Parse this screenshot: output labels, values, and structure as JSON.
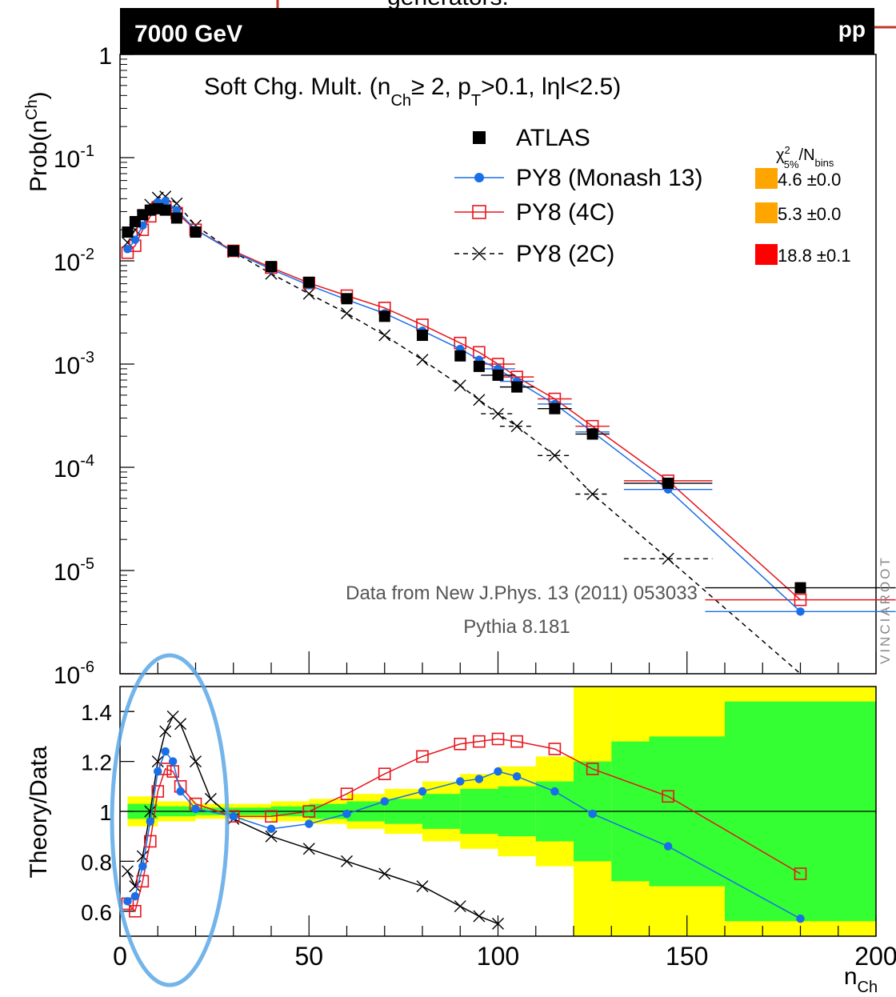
{
  "header": {
    "top_caption": "generators.",
    "energy_label": "7000 GeV",
    "beam_label": "pp"
  },
  "watermark": "VINCIAROOT",
  "chart_data": [
    {
      "type": "line",
      "panel": "main",
      "title": "Soft Chg. Mult. (n",
      "title_sub": "Ch",
      "title_rest": "≥ 2, p",
      "title_sub2": "T",
      "title_tail": ">0.1, lηl<2.5)",
      "ylabel": "Prob(n",
      "ylabel_sub": "Ch",
      "ylabel_tail": ")",
      "xlim": [
        0,
        200
      ],
      "ylim": [
        1e-06,
        1
      ],
      "log_y": true,
      "y_ticks": [
        "1",
        "10",
        "10",
        "10",
        "10",
        "10",
        "10"
      ],
      "y_tick_exponents": [
        "",
        "-1",
        "-2",
        "-3",
        "-4",
        "-5",
        "-6"
      ],
      "y_tick_values": [
        1,
        0.1,
        0.01,
        0.001,
        0.0001,
        1e-05,
        1e-06
      ],
      "legend": {
        "placement": "top-right",
        "chi_header": "χ",
        "chi_sup": "2",
        "chi_sub": "5%",
        "chi_rest": "/N",
        "chi_rest_sub": "bins",
        "entries": [
          {
            "name": "ATLAS",
            "marker": "filled-square",
            "color": "#000000",
            "chi": ""
          },
          {
            "name": "PY8 (Monash 13)",
            "marker": "filled-circle",
            "color": "#1a6fe8",
            "chi": "4.6 ±0.0",
            "chi_color": "#ffa500"
          },
          {
            "name": "PY8 (4C)",
            "marker": "open-square",
            "color": "#e8141c",
            "chi": "5.3 ±0.0",
            "chi_color": "#ffa500"
          },
          {
            "name": "PY8 (2C)",
            "marker": "cross",
            "color": "#000000",
            "chi": "18.8 ±0.1",
            "chi_color": "#ff0000"
          }
        ]
      },
      "annotations": [
        "Data from New J.Phys. 13 (2011) 053033",
        "Pythia 8.181"
      ],
      "series": [
        {
          "name": "ATLAS",
          "color": "#000000",
          "x": [
            2,
            4,
            6,
            8,
            10,
            12,
            15,
            20,
            30,
            40,
            50,
            60,
            70,
            80,
            90,
            95,
            100,
            105,
            115,
            125,
            145,
            180
          ],
          "y": [
            0.019,
            0.024,
            0.028,
            0.031,
            0.032,
            0.031,
            0.026,
            0.019,
            0.0125,
            0.0088,
            0.0062,
            0.0043,
            0.0029,
            0.0019,
            0.0012,
            0.00095,
            0.00078,
            0.0006,
            0.00037,
            0.00021,
            7e-05,
            6.8e-06
          ]
        },
        {
          "name": "PY8 (Monash 13)",
          "color": "#1a6fe8",
          "x": [
            2,
            4,
            6,
            8,
            10,
            12,
            15,
            20,
            30,
            40,
            50,
            60,
            70,
            80,
            90,
            95,
            100,
            105,
            115,
            125,
            145,
            180
          ],
          "y": [
            0.013,
            0.016,
            0.022,
            0.03,
            0.037,
            0.038,
            0.031,
            0.02,
            0.0122,
            0.0083,
            0.0058,
            0.0042,
            0.0031,
            0.0021,
            0.0014,
            0.0011,
            0.0009,
            0.00068,
            0.00041,
            0.00022,
            6.1e-05,
            4e-06
          ]
        },
        {
          "name": "PY8 (4C)",
          "color": "#e8141c",
          "x": [
            2,
            4,
            6,
            8,
            10,
            12,
            15,
            20,
            30,
            40,
            50,
            60,
            70,
            80,
            90,
            95,
            100,
            105,
            115,
            125,
            145,
            180
          ],
          "y": [
            0.012,
            0.014,
            0.02,
            0.027,
            0.033,
            0.033,
            0.029,
            0.02,
            0.0125,
            0.0086,
            0.0061,
            0.0046,
            0.0035,
            0.0024,
            0.0016,
            0.0013,
            0.001,
            0.00075,
            0.00046,
            0.00025,
            7.4e-05,
            5.2e-06
          ]
        },
        {
          "name": "PY8 (2C)",
          "color": "#000000",
          "x": [
            2,
            4,
            6,
            8,
            10,
            12,
            15,
            20,
            30,
            40,
            50,
            60,
            70,
            80,
            90,
            95,
            100,
            105,
            115,
            125,
            145,
            180
          ],
          "y": [
            0.015,
            0.02,
            0.027,
            0.035,
            0.041,
            0.042,
            0.036,
            0.022,
            0.0122,
            0.0075,
            0.0048,
            0.0031,
            0.0019,
            0.0011,
            0.00062,
            0.00045,
            0.00033,
            0.00025,
            0.00013,
            5.5e-05,
            1.3e-05,
            6e-07
          ]
        }
      ]
    },
    {
      "type": "line",
      "panel": "ratio",
      "ylabel": "Theory/Data",
      "xlabel": "n",
      "xlabel_sub": "Ch",
      "xlim": [
        0,
        200
      ],
      "ylim": [
        0.5,
        1.5
      ],
      "x_ticks": [
        "0",
        "50",
        "100",
        "150",
        "200"
      ],
      "x_tick_values": [
        0,
        50,
        100,
        150,
        200
      ],
      "y_ticks": [
        "1.4",
        "1.2",
        "1",
        "0.8",
        "0.6"
      ],
      "y_tick_values": [
        1.4,
        1.2,
        1.0,
        0.8,
        0.6
      ],
      "bands": {
        "x_edges": [
          2,
          10,
          20,
          30,
          40,
          50,
          60,
          70,
          80,
          90,
          100,
          110,
          120,
          130,
          140,
          160,
          200
        ],
        "yellow_half": [
          0.06,
          0.04,
          0.03,
          0.03,
          0.04,
          0.05,
          0.07,
          0.09,
          0.12,
          0.15,
          0.18,
          0.22,
          0.6,
          0.6,
          0.6,
          0.6
        ],
        "green_half": [
          0.03,
          0.02,
          0.015,
          0.015,
          0.02,
          0.03,
          0.04,
          0.05,
          0.07,
          0.09,
          0.1,
          0.12,
          0.2,
          0.28,
          0.3,
          0.44
        ]
      },
      "series": [
        {
          "name": "PY8 (Monash 13)",
          "color": "#1a6fe8",
          "x": [
            2,
            4,
            6,
            8,
            10,
            12,
            14,
            16,
            20,
            30,
            40,
            50,
            60,
            70,
            80,
            90,
            95,
            100,
            105,
            115,
            125,
            145,
            180
          ],
          "y": [
            0.64,
            0.66,
            0.78,
            0.96,
            1.16,
            1.24,
            1.2,
            1.08,
            1.01,
            0.98,
            0.93,
            0.95,
            0.99,
            1.04,
            1.08,
            1.12,
            1.13,
            1.16,
            1.14,
            1.08,
            0.99,
            0.86,
            0.57
          ]
        },
        {
          "name": "PY8 (4C)",
          "color": "#e8141c",
          "x": [
            2,
            4,
            6,
            8,
            10,
            12,
            14,
            16,
            20,
            30,
            40,
            50,
            60,
            70,
            80,
            90,
            95,
            100,
            105,
            115,
            125,
            145,
            180
          ],
          "y": [
            0.63,
            0.6,
            0.72,
            0.88,
            1.08,
            1.17,
            1.16,
            1.1,
            1.03,
            0.98,
            0.98,
            1.0,
            1.07,
            1.15,
            1.22,
            1.27,
            1.28,
            1.29,
            1.28,
            1.25,
            1.17,
            1.06,
            0.75
          ]
        },
        {
          "name": "PY8 (2C)",
          "color": "#000000",
          "x": [
            2,
            4,
            6,
            8,
            10,
            12,
            14,
            16,
            20,
            24,
            30,
            40,
            50,
            60,
            70,
            80,
            90,
            95,
            100
          ],
          "y": [
            0.76,
            0.7,
            0.82,
            1.0,
            1.2,
            1.32,
            1.38,
            1.35,
            1.2,
            1.05,
            0.97,
            0.9,
            0.85,
            0.8,
            0.75,
            0.7,
            0.62,
            0.58,
            0.55
          ]
        }
      ]
    }
  ]
}
